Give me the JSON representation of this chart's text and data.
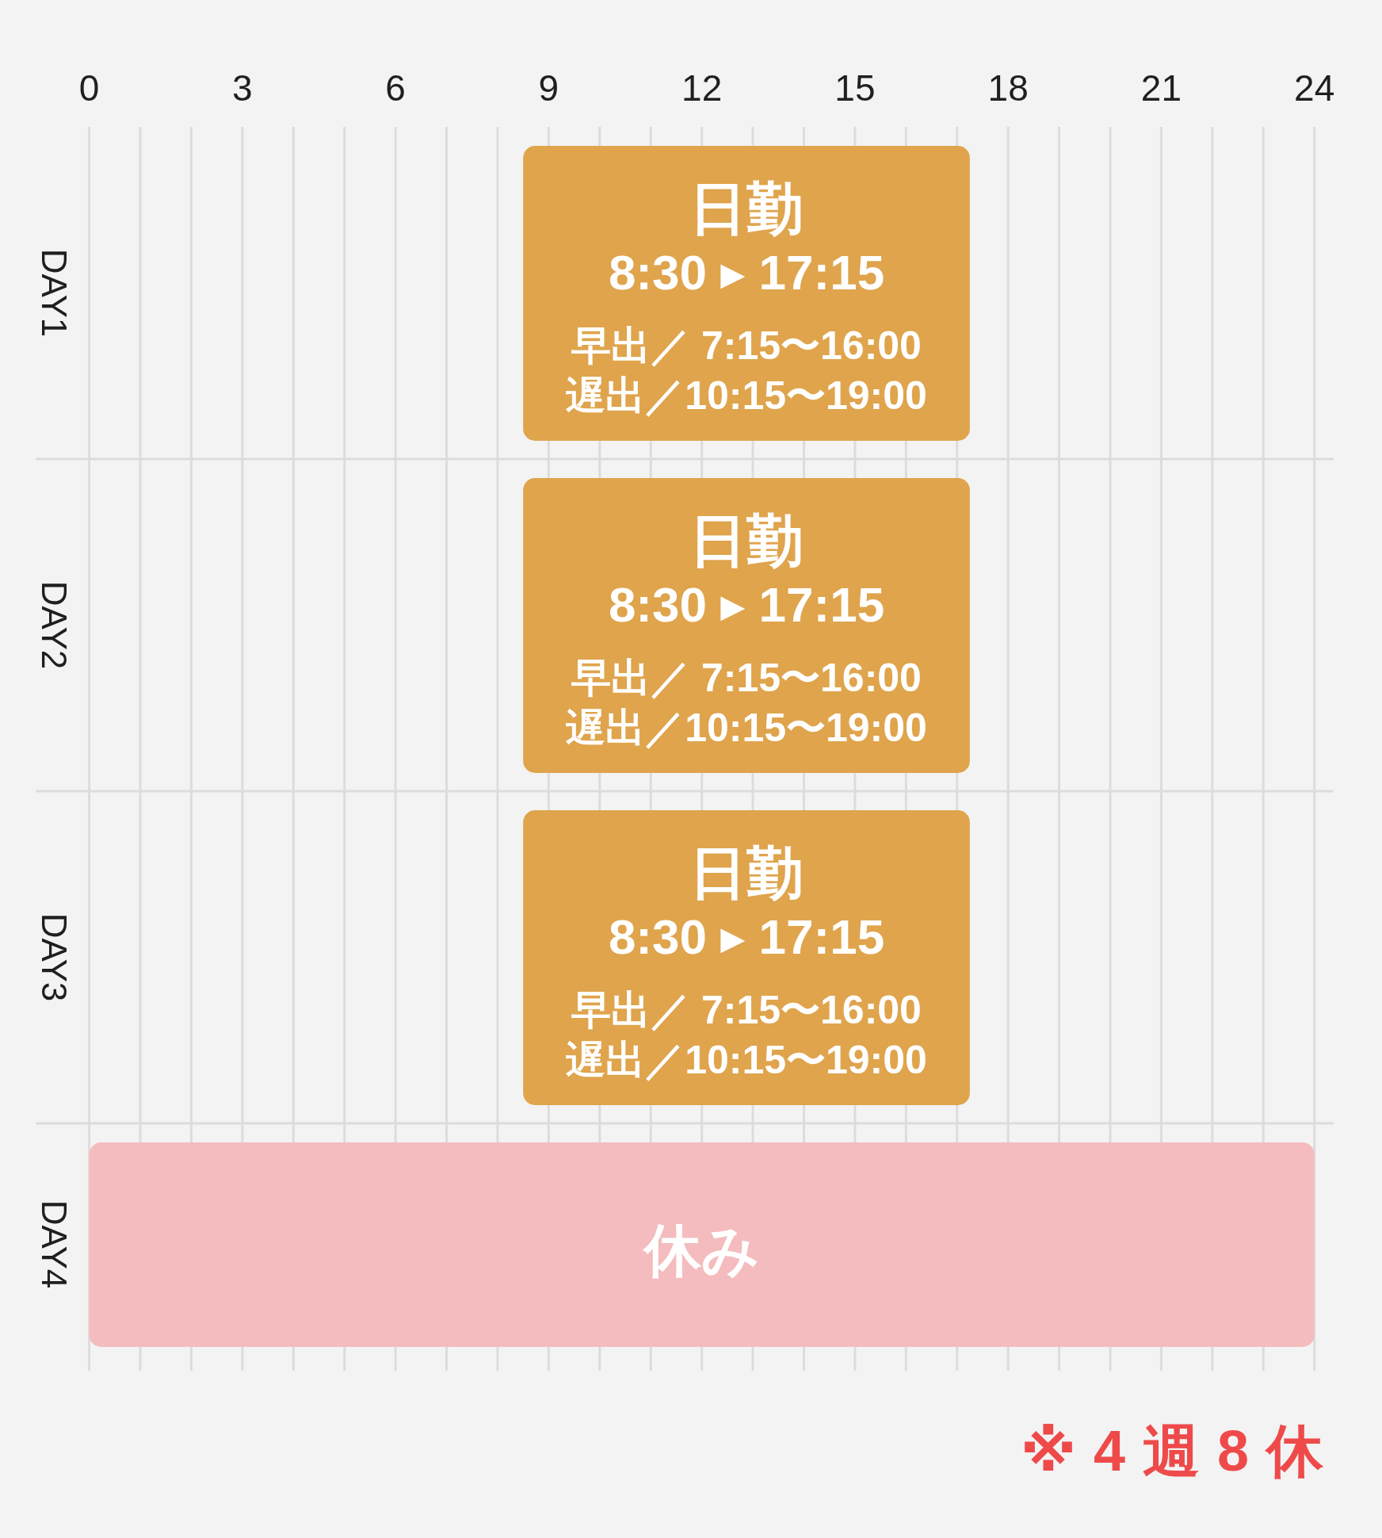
{
  "chart_data": {
    "type": "bar",
    "orientation": "horizontal",
    "categories": [
      "DAY1",
      "DAY2",
      "DAY3",
      "DAY4"
    ],
    "base": [
      8.5,
      8.5,
      8.5,
      0
    ],
    "values": [
      8.75,
      8.75,
      8.75,
      24
    ],
    "colors": [
      "#dfa44c",
      "#dfa44c",
      "#dfa44c",
      "#f4bcbe"
    ],
    "value_labels": [
      "日勤\n8:30 ▸ 17:15\n早出／ 7:15〜16:00\n遅出／10:15〜19:00",
      "日勤\n8:30 ▸ 17:15\n早出／ 7:15〜16:00\n遅出／10:15〜19:00",
      "日勤\n8:30 ▸ 17:15\n早出／ 7:15〜16:00\n遅出／10:15〜19:00",
      "休み"
    ],
    "xlim": [
      0,
      24
    ],
    "xticks": [
      0,
      {
        "value": 1,
        "label": null
      },
      {
        "value": 2,
        "label": null
      },
      3,
      {
        "value": 4,
        "label": null
      },
      {
        "value": 5,
        "label": null
      },
      6,
      {
        "value": 7,
        "label": null
      },
      {
        "value": 8,
        "label": null
      },
      9,
      {
        "value": 10,
        "label": null
      },
      {
        "value": 11,
        "label": null
      },
      12,
      {
        "value": 13,
        "label": null
      },
      {
        "value": 14,
        "label": null
      },
      15,
      {
        "value": 16,
        "label": null
      },
      {
        "value": 17,
        "label": null
      },
      18,
      {
        "value": 19,
        "label": null
      },
      {
        "value": 20,
        "label": null
      },
      21,
      {
        "value": 22,
        "label": null
      },
      {
        "value": 23,
        "label": null
      },
      24
    ],
    "grid": true,
    "annotations": [
      "※4週8休"
    ]
  }
}
